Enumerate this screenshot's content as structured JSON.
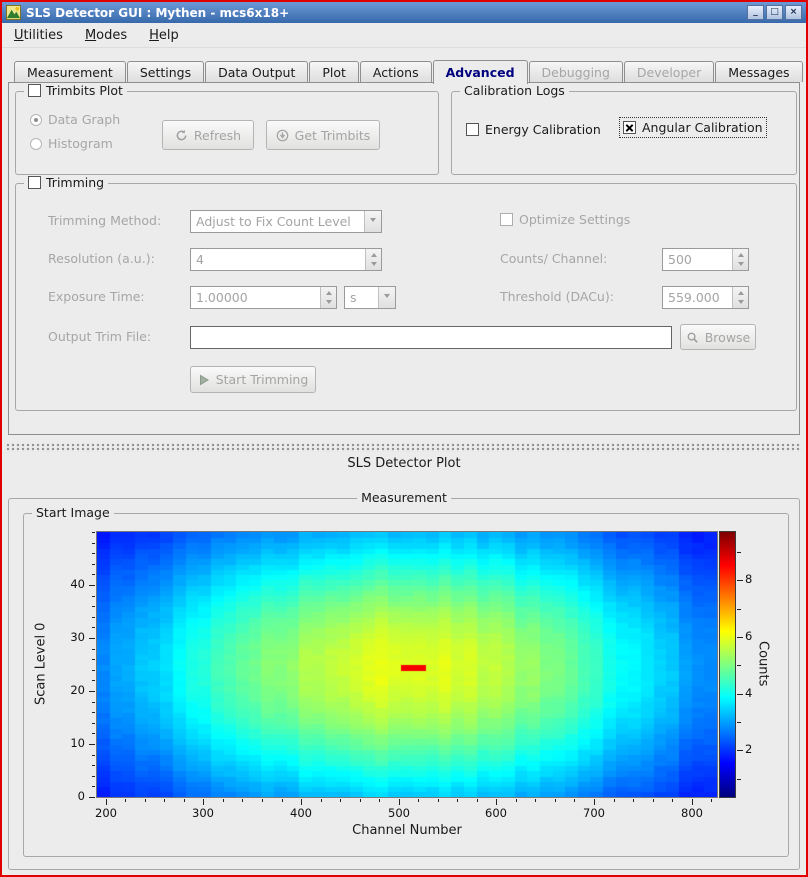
{
  "colors": {
    "window_border": "#e00000",
    "titlebar_top": "#6d9ad6",
    "titlebar_bottom": "#3668ab",
    "selected_tab_text": "#00007f",
    "background": "#ececec"
  },
  "window": {
    "title": "SLS Detector GUI : Mythen - mcs6x18+",
    "buttons": {
      "minimize": "_",
      "maximize": "□",
      "close": "×"
    }
  },
  "menu": {
    "items": [
      {
        "label": "Utilities",
        "underline": 0
      },
      {
        "label": "Modes",
        "underline": 0
      },
      {
        "label": "Help",
        "underline": 0
      }
    ]
  },
  "tabs": [
    {
      "label": "Measurement",
      "state": "normal"
    },
    {
      "label": "Settings",
      "state": "normal"
    },
    {
      "label": "Data Output",
      "state": "normal"
    },
    {
      "label": "Plot",
      "state": "normal"
    },
    {
      "label": "Actions",
      "state": "normal"
    },
    {
      "label": "Advanced",
      "state": "selected"
    },
    {
      "label": "Debugging",
      "state": "disabled"
    },
    {
      "label": "Developer",
      "state": "disabled"
    },
    {
      "label": "Messages",
      "state": "normal"
    }
  ],
  "trimbits_plot": {
    "title": "Trimbits Plot",
    "enabled": false,
    "data_graph_label": "Data Graph",
    "data_graph_selected": true,
    "histogram_label": "Histogram",
    "histogram_selected": false,
    "refresh_label": "Refresh",
    "get_trimbits_label": "Get Trimbits"
  },
  "calibration_logs": {
    "title": "Calibration Logs",
    "energy_label": "Energy Calibration",
    "energy_checked": false,
    "angular_label": "Angular Calibration",
    "angular_checked": true
  },
  "trimming": {
    "title": "Trimming",
    "enabled": false,
    "method_label": "Trimming Method:",
    "method_value": "Adjust to Fix Count Level",
    "optimize_label": "Optimize Settings",
    "optimize_checked": false,
    "resolution_label": "Resolution (a.u.):",
    "resolution_value": "4",
    "counts_label": "Counts/ Channel:",
    "counts_value": "500",
    "exposure_label": "Exposure Time:",
    "exposure_value": "1.00000",
    "exposure_unit": "s",
    "threshold_label": "Threshold (DACu):",
    "threshold_value": "559.000",
    "output_label": "Output Trim File:",
    "output_value": "",
    "browse_label": "Browse",
    "start_label": "Start Trimming"
  },
  "plot_dock": {
    "title": "SLS Detector Plot"
  },
  "measurement": {
    "title": "Measurement"
  },
  "start_image": {
    "title": "Start Image"
  },
  "chart_data": {
    "type": "heatmap",
    "xlabel": "Channel Number",
    "ylabel": "Scan Level 0",
    "colorbar_label": "Counts",
    "colormap": "jet",
    "x_range": [
      191,
      826
    ],
    "y_range": [
      0,
      50
    ],
    "value_range": [
      0.35,
      9.7
    ],
    "x_ticks": [
      200,
      300,
      400,
      500,
      600,
      700,
      800
    ],
    "x_minor_step": 20,
    "y_ticks": [
      0,
      10,
      20,
      30,
      40
    ],
    "y_minor_step": 2,
    "colorbar_ticks": [
      2,
      4,
      6,
      8
    ],
    "colorbar_minor_step": 1,
    "grid": {
      "cols": 49,
      "rows": 50
    },
    "model": {
      "type": "gaussian-peak",
      "base": 0.75,
      "amplitude": 5.2,
      "center_col": 24,
      "center_row": 24,
      "sigma_cols": 17.5,
      "sigma_rows": 21,
      "hotspot": {
        "cols": [
          24,
          25
        ],
        "row": 24,
        "value": 8.6
      }
    }
  }
}
